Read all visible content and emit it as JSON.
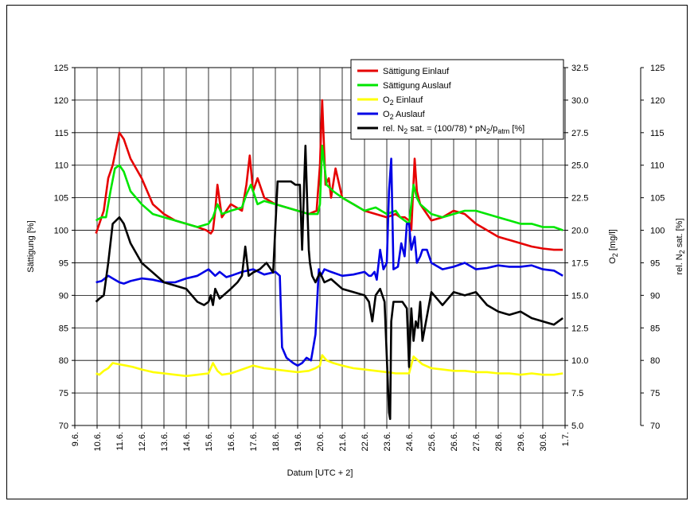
{
  "chart_data": {
    "type": "line",
    "xlabel": "Datum [UTC + 2]",
    "x_ticks": [
      "9.6.",
      "10.6.",
      "11.6.",
      "12.6.",
      "13.6.",
      "14.6.",
      "15.6.",
      "16.6.",
      "17.6.",
      "18.6.",
      "19.6.",
      "20.6.",
      "21.6.",
      "22.6.",
      "23.6.",
      "24.6.",
      "25.6.",
      "26.6.",
      "27.6.",
      "28.6.",
      "29.6.",
      "30.6.",
      "1.7."
    ],
    "xlim": [
      0,
      22
    ],
    "y_left": {
      "label": "Sättigung [%]",
      "lim": [
        70,
        125
      ],
      "ticks": [
        "70",
        "75",
        "80",
        "85",
        "90",
        "95",
        "100",
        "105",
        "110",
        "115",
        "120",
        "125"
      ]
    },
    "y_mid": {
      "label_main": "O",
      "label_sub": "2",
      "label_tail": " [mg/l]",
      "lim": [
        5,
        32.5
      ],
      "ticks": [
        "5.0",
        "7.5",
        "10.0",
        "12.5",
        "15.0",
        "17.5",
        "20.0",
        "22.5",
        "25.0",
        "27.5",
        "30.0",
        "32.5"
      ]
    },
    "y_right": {
      "label_main": "rel. N",
      "label_sub": "2",
      "label_tail": " sat. [%]",
      "lim": [
        70,
        125
      ],
      "ticks": [
        "70",
        "75",
        "80",
        "85",
        "90",
        "95",
        "100",
        "105",
        "110",
        "115",
        "120",
        "125"
      ]
    },
    "grid": true,
    "legend_position": "top-right",
    "legend": [
      {
        "color": "#e60000",
        "parts": [
          {
            "t": "Sättigung Einlauf",
            "s": ""
          }
        ]
      },
      {
        "color": "#00e600",
        "parts": [
          {
            "t": "Sättigung Auslauf",
            "s": ""
          }
        ]
      },
      {
        "color": "#ffff00",
        "parts": [
          {
            "t": "O",
            "s": ""
          },
          {
            "t": "2",
            "s": "sub"
          },
          {
            "t": " Einlauf",
            "s": ""
          }
        ]
      },
      {
        "color": "#0000e6",
        "parts": [
          {
            "t": "O",
            "s": ""
          },
          {
            "t": "2",
            "s": "sub"
          },
          {
            "t": " Auslauf",
            "s": ""
          }
        ]
      },
      {
        "color": "#000000",
        "parts": [
          {
            "t": "rel. N",
            "s": ""
          },
          {
            "t": "2",
            "s": "sub"
          },
          {
            "t": " sat. = (100/78) * pN",
            "s": ""
          },
          {
            "t": "2",
            "s": "sub"
          },
          {
            "t": "/p",
            "s": ""
          },
          {
            "t": "atm",
            "s": "sub"
          },
          {
            "t": " [%]",
            "s": ""
          }
        ]
      }
    ],
    "series": [
      {
        "name": "Sättigung Einlauf",
        "color": "#e60000",
        "axis": "left",
        "x": [
          0.95,
          1.1,
          1.3,
          1.5,
          1.7,
          2.0,
          2.2,
          2.5,
          3.0,
          3.5,
          4.0,
          4.5,
          5.0,
          5.5,
          5.9,
          6.1,
          6.2,
          6.3,
          6.4,
          6.6,
          7.0,
          7.5,
          7.7,
          7.85,
          8.0,
          8.2,
          8.5,
          9.0,
          9.5,
          10.0,
          10.5,
          10.85,
          11.0,
          11.1,
          11.25,
          11.4,
          11.5,
          11.7,
          12.0,
          12.5,
          13.0,
          13.5,
          14.0,
          14.4,
          14.6,
          14.8,
          15.0,
          15.1,
          15.25,
          15.35,
          15.5,
          15.7,
          16.0,
          16.5,
          17.0,
          17.5,
          18.0,
          18.5,
          19.0,
          19.5,
          20.0,
          20.5,
          21.0,
          21.5,
          21.9
        ],
        "y": [
          99.5,
          101,
          103,
          108,
          110,
          115,
          114,
          111,
          108,
          104,
          102.5,
          101.5,
          101,
          100.5,
          100,
          99.5,
          100,
          103,
          107,
          102,
          104,
          103,
          107,
          111.5,
          106,
          108,
          105,
          104,
          103.5,
          103,
          102.5,
          103,
          110,
          120,
          107,
          108,
          105,
          109.5,
          105,
          104,
          103,
          102.5,
          102,
          102.5,
          102,
          102,
          101.5,
          100,
          111,
          106,
          104,
          103,
          101.5,
          102,
          103,
          102.5,
          101,
          100,
          99,
          98.5,
          98,
          97.5,
          97.2,
          97,
          97
        ]
      },
      {
        "name": "Sättigung Auslauf",
        "color": "#00e600",
        "axis": "left",
        "x": [
          0.95,
          1.2,
          1.4,
          1.6,
          1.8,
          2.0,
          2.2,
          2.5,
          3.0,
          3.5,
          4.0,
          4.5,
          5.0,
          5.5,
          6.0,
          6.2,
          6.4,
          6.6,
          7.0,
          7.5,
          7.7,
          7.9,
          8.2,
          8.5,
          9.0,
          9.5,
          10.0,
          10.5,
          10.9,
          11.0,
          11.1,
          11.3,
          11.6,
          12.0,
          12.5,
          13.0,
          13.5,
          14.0,
          14.4,
          14.6,
          14.8,
          15.0,
          15.2,
          15.35,
          15.5,
          16.0,
          16.5,
          17.0,
          17.5,
          18.0,
          18.5,
          19.0,
          19.5,
          20.0,
          20.5,
          21.0,
          21.5,
          21.9
        ],
        "y": [
          101.5,
          102,
          102,
          106,
          109.5,
          110,
          109,
          106,
          104,
          102.5,
          102,
          101.5,
          101,
          100.5,
          101,
          102,
          104,
          102.5,
          103,
          103.5,
          105.5,
          107,
          104,
          104.5,
          104,
          103.5,
          103,
          102.5,
          102.5,
          104,
          113,
          107,
          106,
          105,
          104,
          103,
          103.5,
          102.5,
          103,
          102,
          101.5,
          101,
          107,
          105,
          104,
          102.5,
          102,
          102.5,
          103,
          103,
          102.5,
          102,
          101.5,
          101,
          101,
          100.5,
          100.5,
          100
        ]
      },
      {
        "name": "O2 Einlauf",
        "color": "#ffff00",
        "axis": "mid",
        "x": [
          0.95,
          1.1,
          1.3,
          1.5,
          1.7,
          2.0,
          2.3,
          2.6,
          3.0,
          3.5,
          4.0,
          4.5,
          5.0,
          5.5,
          6.0,
          6.2,
          6.4,
          6.6,
          7.0,
          7.5,
          8.0,
          8.5,
          9.0,
          9.5,
          10.0,
          10.5,
          10.8,
          11.0,
          11.1,
          11.3,
          11.6,
          12.0,
          12.5,
          13.0,
          13.5,
          14.0,
          14.4,
          14.6,
          14.8,
          15.0,
          15.2,
          15.4,
          15.6,
          16.0,
          16.5,
          17.0,
          17.5,
          18.0,
          18.5,
          19.0,
          19.5,
          20.0,
          20.5,
          21.0,
          21.5,
          21.9
        ],
        "y": [
          9.0,
          8.9,
          9.2,
          9.4,
          9.8,
          9.7,
          9.6,
          9.5,
          9.3,
          9.1,
          9.0,
          8.9,
          8.8,
          8.9,
          9.0,
          9.8,
          9.2,
          8.9,
          9.0,
          9.3,
          9.6,
          9.4,
          9.3,
          9.2,
          9.1,
          9.2,
          9.4,
          9.6,
          10.4,
          10.0,
          9.8,
          9.6,
          9.4,
          9.3,
          9.2,
          9.1,
          9.0,
          9.0,
          9.0,
          9.0,
          10.3,
          10.0,
          9.7,
          9.4,
          9.3,
          9.2,
          9.2,
          9.1,
          9.1,
          9.0,
          9.0,
          8.9,
          9.0,
          8.9,
          8.9,
          9.0
        ]
      },
      {
        "name": "O2 Auslauf",
        "color": "#0000e6",
        "axis": "mid",
        "x": [
          0.95,
          1.2,
          1.5,
          1.7,
          2.0,
          2.2,
          2.5,
          3.0,
          3.5,
          4.0,
          4.5,
          5.0,
          5.5,
          6.0,
          6.3,
          6.5,
          6.8,
          7.0,
          7.5,
          8.0,
          8.5,
          9.0,
          9.2,
          9.3,
          9.5,
          9.8,
          10.0,
          10.2,
          10.4,
          10.6,
          10.8,
          10.95,
          11.05,
          11.2,
          11.5,
          12.0,
          12.5,
          13.0,
          13.2,
          13.3,
          13.45,
          13.55,
          13.7,
          13.85,
          14.0,
          14.1,
          14.2,
          14.3,
          14.5,
          14.65,
          14.8,
          14.9,
          15.0,
          15.1,
          15.25,
          15.35,
          15.5,
          15.6,
          15.8,
          16.0,
          16.5,
          17.0,
          17.5,
          18.0,
          18.5,
          19.0,
          19.5,
          20.0,
          20.5,
          21.0,
          21.5,
          21.9
        ],
        "y": [
          16.0,
          16.1,
          16.5,
          16.3,
          16.0,
          15.9,
          16.1,
          16.3,
          16.2,
          16.0,
          16.0,
          16.3,
          16.5,
          17.0,
          16.5,
          16.8,
          16.4,
          16.5,
          16.8,
          17.0,
          16.6,
          16.8,
          16.5,
          11.0,
          10.2,
          9.8,
          9.6,
          9.8,
          10.2,
          10.0,
          12.0,
          17.0,
          16.5,
          17.0,
          16.8,
          16.5,
          16.6,
          16.8,
          16.5,
          16.5,
          16.8,
          16.2,
          18.5,
          17.0,
          17.5,
          23.0,
          25.5,
          17.0,
          17.2,
          19.0,
          18.0,
          20.5,
          20.5,
          18.5,
          19.5,
          17.5,
          18.0,
          18.5,
          18.5,
          17.5,
          17.0,
          17.2,
          17.5,
          17.0,
          17.1,
          17.3,
          17.2,
          17.2,
          17.3,
          17.0,
          16.9,
          16.5
        ]
      },
      {
        "name": "rel. N2 sat.",
        "color": "#000000",
        "axis": "right",
        "x": [
          0.95,
          1.1,
          1.3,
          1.5,
          1.7,
          2.0,
          2.2,
          2.5,
          3.0,
          3.5,
          4.0,
          4.5,
          5.0,
          5.5,
          5.8,
          6.0,
          6.1,
          6.2,
          6.3,
          6.5,
          7.0,
          7.3,
          7.5,
          7.65,
          7.8,
          8.0,
          8.3,
          8.6,
          8.9,
          9.1,
          9.3,
          9.5,
          9.7,
          9.9,
          10.1,
          10.2,
          10.3,
          10.35,
          10.45,
          10.5,
          10.55,
          10.65,
          10.8,
          11.0,
          11.2,
          11.5,
          12.0,
          12.5,
          13.0,
          13.2,
          13.35,
          13.5,
          13.7,
          13.9,
          14.1,
          14.15,
          14.2,
          14.3,
          14.5,
          14.7,
          14.9,
          15.0,
          15.1,
          15.2,
          15.3,
          15.4,
          15.5,
          15.6,
          16.0,
          16.5,
          17.0,
          17.5,
          18.0,
          18.5,
          19.0,
          19.5,
          20.0,
          20.5,
          21.0,
          21.5,
          21.9
        ],
        "y": [
          89,
          89.5,
          90,
          95,
          101,
          102,
          101,
          98,
          95,
          93.5,
          92,
          91.5,
          91,
          89,
          88.5,
          89,
          90,
          88.5,
          91,
          89.5,
          91,
          92,
          93,
          97.5,
          93,
          93.5,
          94,
          95,
          93.5,
          107.5,
          107.5,
          107.5,
          107.5,
          107,
          107,
          97,
          108,
          113,
          102,
          97,
          95,
          93,
          92,
          93.5,
          92,
          92.5,
          91,
          90.5,
          90,
          89,
          86,
          90,
          91,
          89,
          72,
          71,
          86,
          89,
          89,
          89,
          88,
          79,
          88,
          83,
          86,
          85,
          89,
          83,
          90.5,
          88.5,
          90.5,
          90,
          90.5,
          88.5,
          87.5,
          87,
          87.5,
          86.5,
          86,
          85.5,
          86.5
        ]
      }
    ]
  }
}
